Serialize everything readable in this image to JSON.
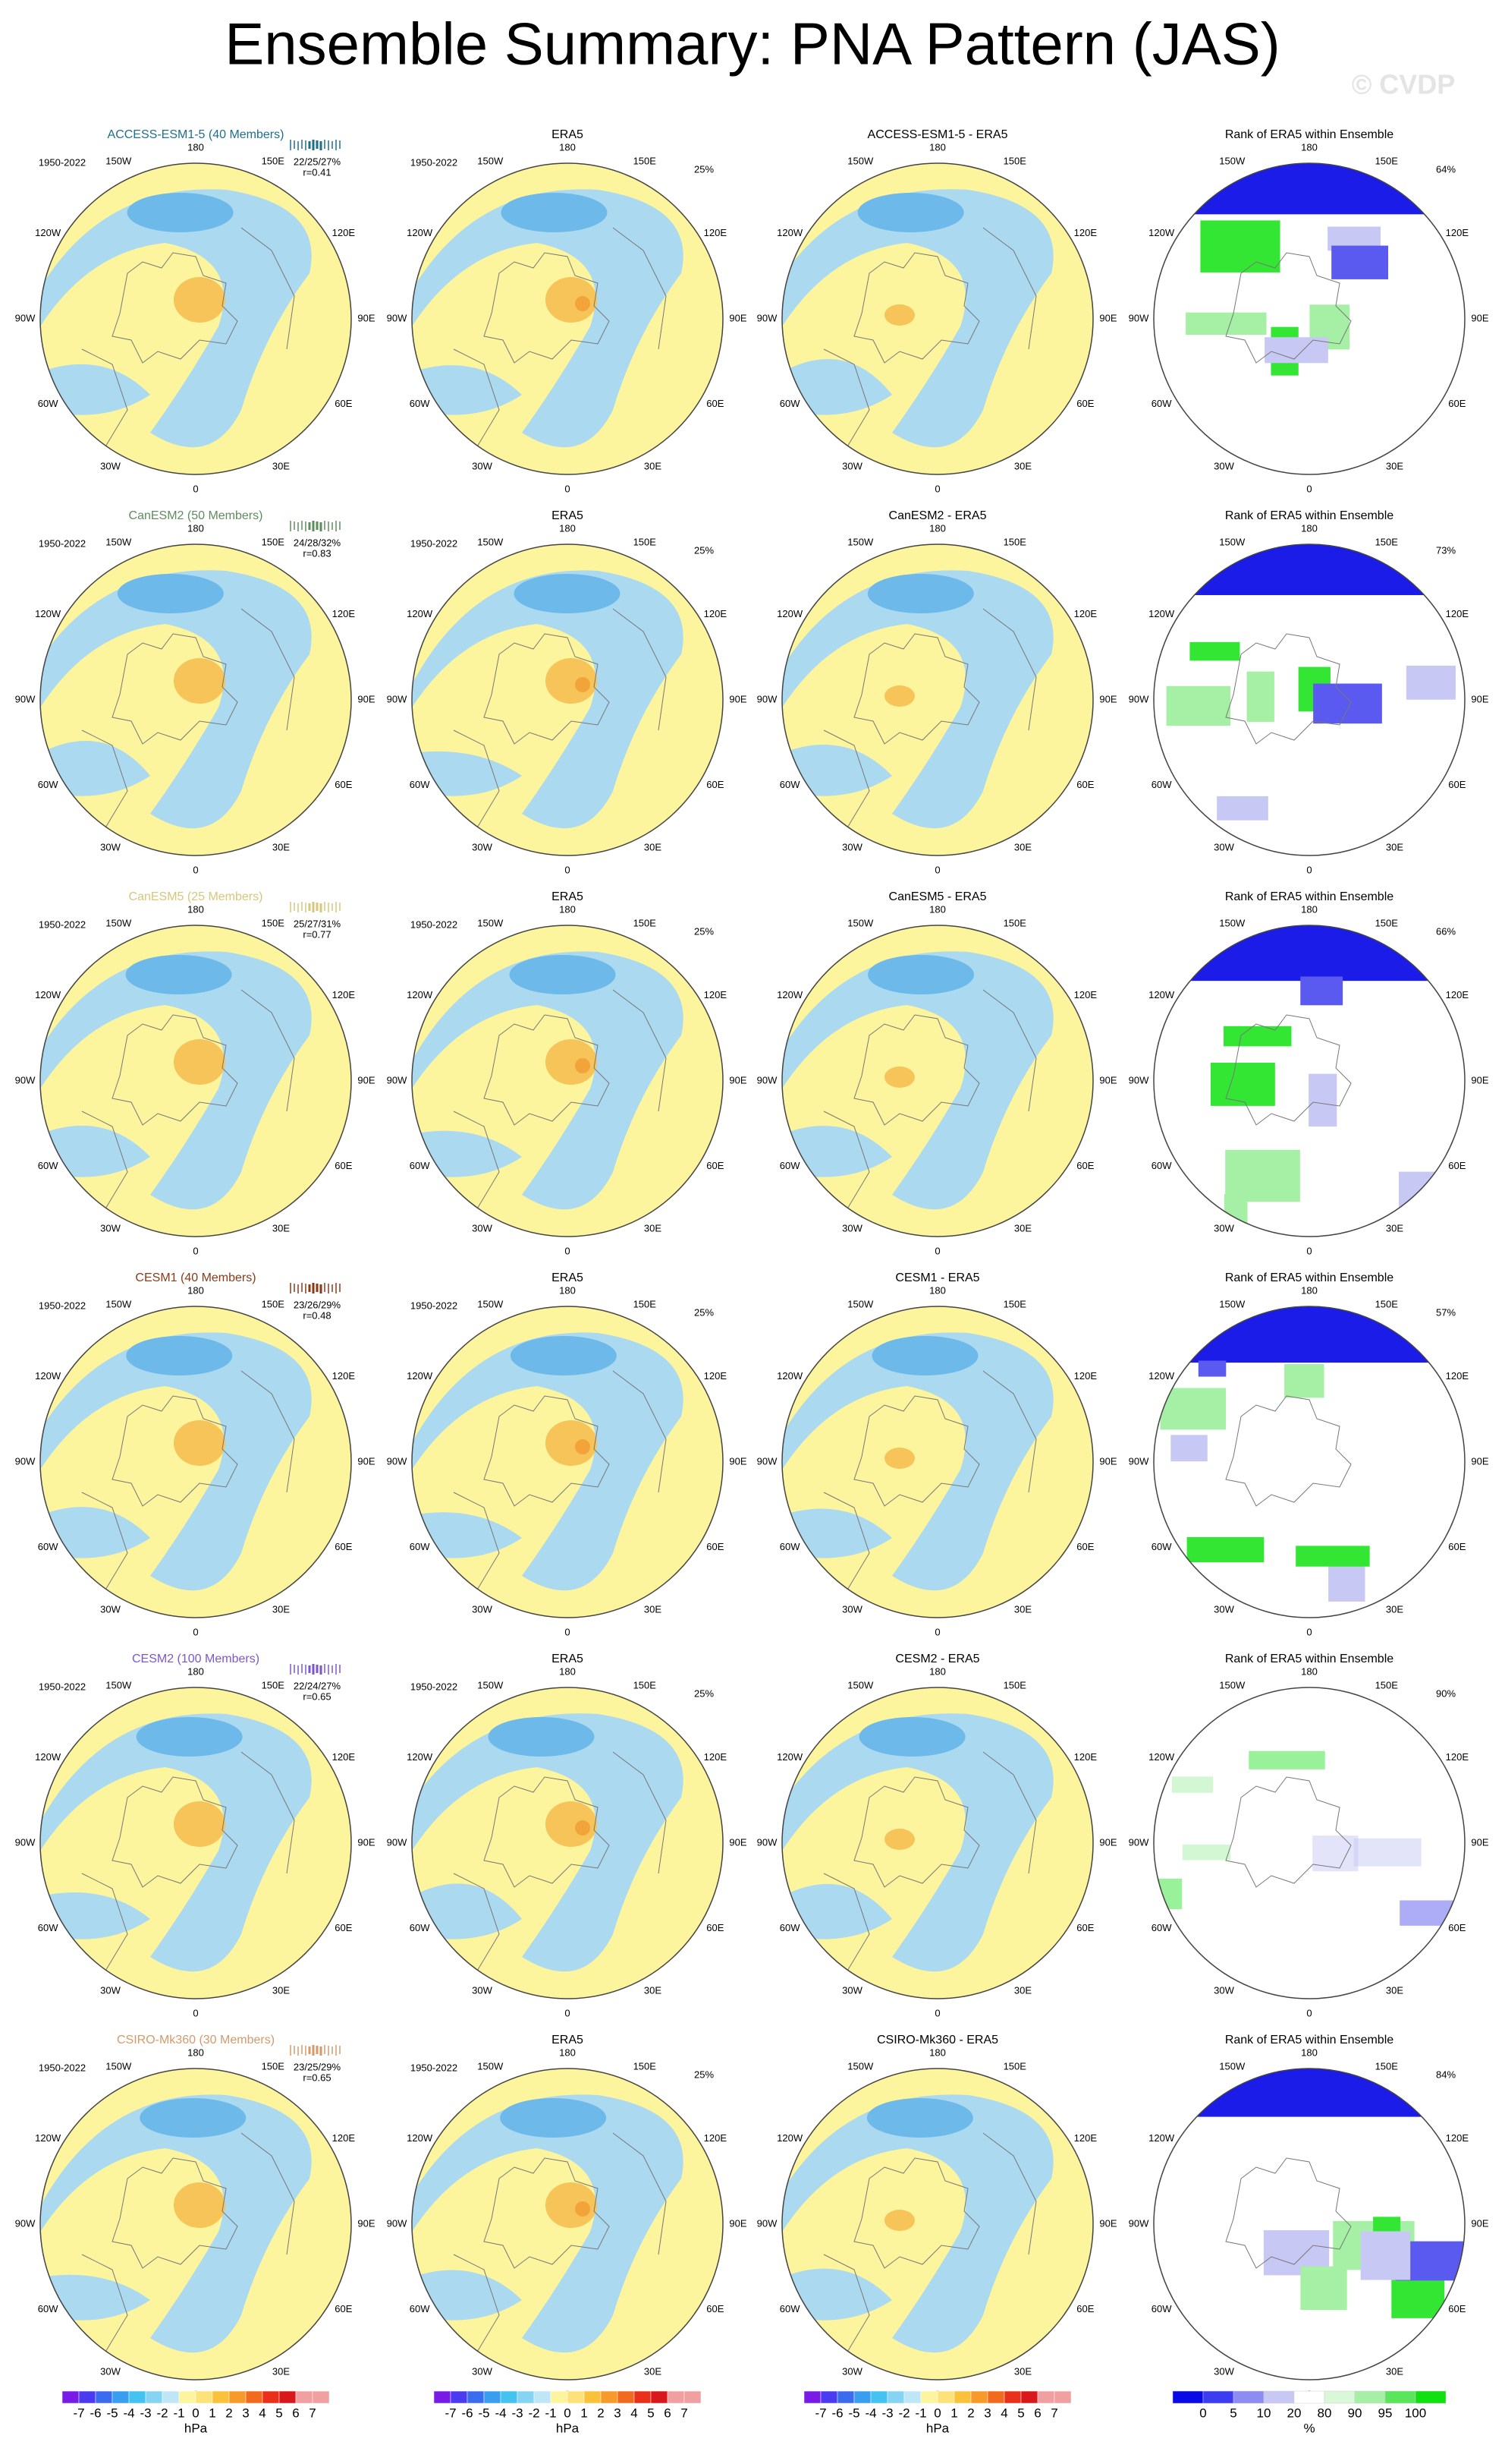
{
  "title": "Ensemble Summary: PNA Pattern (JAS)",
  "watermark": "© CVDP",
  "period": "1950-2022",
  "era5_title": "ERA5",
  "era5_pct": "25%",
  "rank_title": "Rank of ERA5 within Ensemble",
  "lon_labels": [
    {
      "value": 180,
      "label": "180"
    },
    {
      "value": -150,
      "label": "150W"
    },
    {
      "value": 150,
      "label": "150E"
    },
    {
      "value": -120,
      "label": "120W"
    },
    {
      "value": 120,
      "label": "120E"
    },
    {
      "value": -90,
      "label": "90W"
    },
    {
      "value": 90,
      "label": "90E"
    },
    {
      "value": -60,
      "label": "60W"
    },
    {
      "value": 60,
      "label": "60E"
    },
    {
      "value": -30,
      "label": "30W"
    },
    {
      "value": 30,
      "label": "30E"
    },
    {
      "value": 0,
      "label": "0"
    }
  ],
  "rows": [
    {
      "model_title": "ACCESS-ESM1-5 (40 Members)",
      "color": "#1f6e8c",
      "stats": "22/25/27%",
      "r": "r=0.41",
      "diff_title": "ACCESS-ESM1-5 - ERA5",
      "rank_pct": "64%"
    },
    {
      "model_title": "CanESM2 (50 Members)",
      "color": "#5e8c5e",
      "stats": "24/28/32%",
      "r": "r=0.83",
      "diff_title": "CanESM2 - ERA5",
      "rank_pct": "73%"
    },
    {
      "model_title": "CanESM5 (25 Members)",
      "color": "#d6c77a",
      "stats": "25/27/31%",
      "r": "r=0.77",
      "diff_title": "CanESM5 - ERA5",
      "rank_pct": "66%"
    },
    {
      "model_title": "CESM1 (40 Members)",
      "color": "#8b3a18",
      "stats": "23/26/29%",
      "r": "r=0.48",
      "diff_title": "CESM1 - ERA5",
      "rank_pct": "57%"
    },
    {
      "model_title": "CESM2 (100 Members)",
      "color": "#7a58cc",
      "stats": "22/24/27%",
      "r": "r=0.65",
      "diff_title": "CESM2 - ERA5",
      "rank_pct": "90%"
    },
    {
      "model_title": "CSIRO-Mk360 (30 Members)",
      "color": "#d49a6c",
      "stats": "23/25/29%",
      "r": "r=0.65",
      "diff_title": "CSIRO-Mk360 - ERA5",
      "rank_pct": "84%"
    }
  ],
  "colorbar_hpa": {
    "ticks": [
      -7,
      -6,
      -5,
      -4,
      -3,
      -2,
      -1,
      0,
      1,
      2,
      3,
      4,
      5,
      6,
      7
    ],
    "unit": "hPa"
  },
  "colorbar_rank": {
    "ticks": [
      0,
      5,
      10,
      20,
      80,
      90,
      95,
      100
    ],
    "unit": "%"
  }
}
